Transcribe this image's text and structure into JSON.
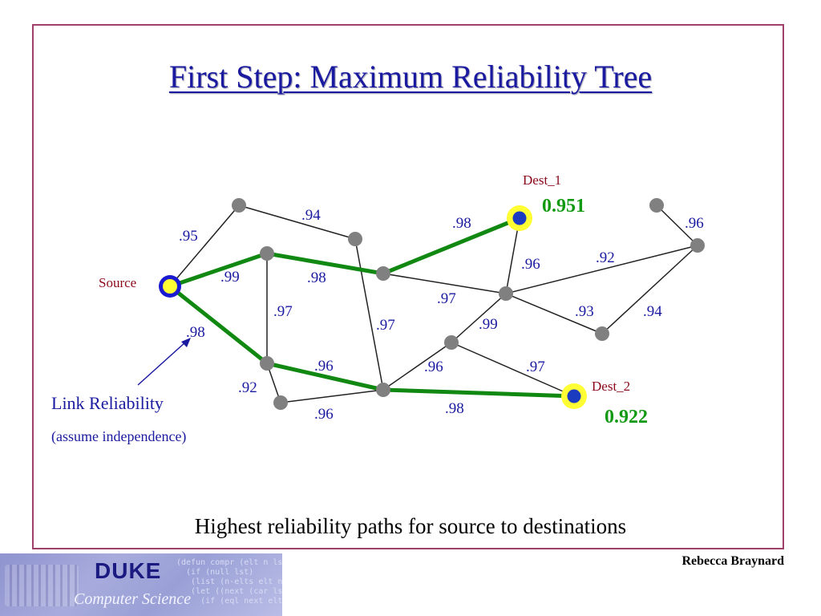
{
  "title": "First Step: Maximum Reliability Tree",
  "caption": "Highest reliability paths for source to destinations",
  "author": "Rebecca Braynard",
  "legend": {
    "link_reliability": "Link Reliability",
    "assumption": "(assume independence)"
  },
  "nodes_labels": {
    "source": "Source",
    "dest1": "Dest_1",
    "dest1_value": "0.951",
    "dest2": "Dest_2",
    "dest2_value": "0.922"
  },
  "edge_labels": {
    "e1": ".95",
    "e2": ".94",
    "e3": ".99",
    "e4": ".98",
    "e5": ".98",
    "e6": ".97",
    "e7": ".98",
    "e8": ".97",
    "e9": ".96",
    "e10": ".92",
    "e11": ".96",
    "e12": ".97",
    "e13": ".99",
    "e14": ".93",
    "e15": ".94",
    "e16": ".92",
    "e17": ".96",
    "e18": ".96",
    "e19": ".97",
    "e20": ".98",
    "e21": ".96"
  },
  "colors": {
    "tree_edge": "#118811",
    "edge": "#222222",
    "node": "#808080",
    "label_blue": "#1a1aa0",
    "label_dark_red": "#8b0a1a",
    "value_green": "#119911",
    "highlight": "#ffff33"
  },
  "logo": {
    "brand": "DUKE",
    "department": "Computer Science",
    "code_text": "(defun compr (elt n lst)\n  (if (null lst)\n   (list (n-elts elt n))\n   (let ((next (car lst)))\n     (if (eql next elt)"
  }
}
